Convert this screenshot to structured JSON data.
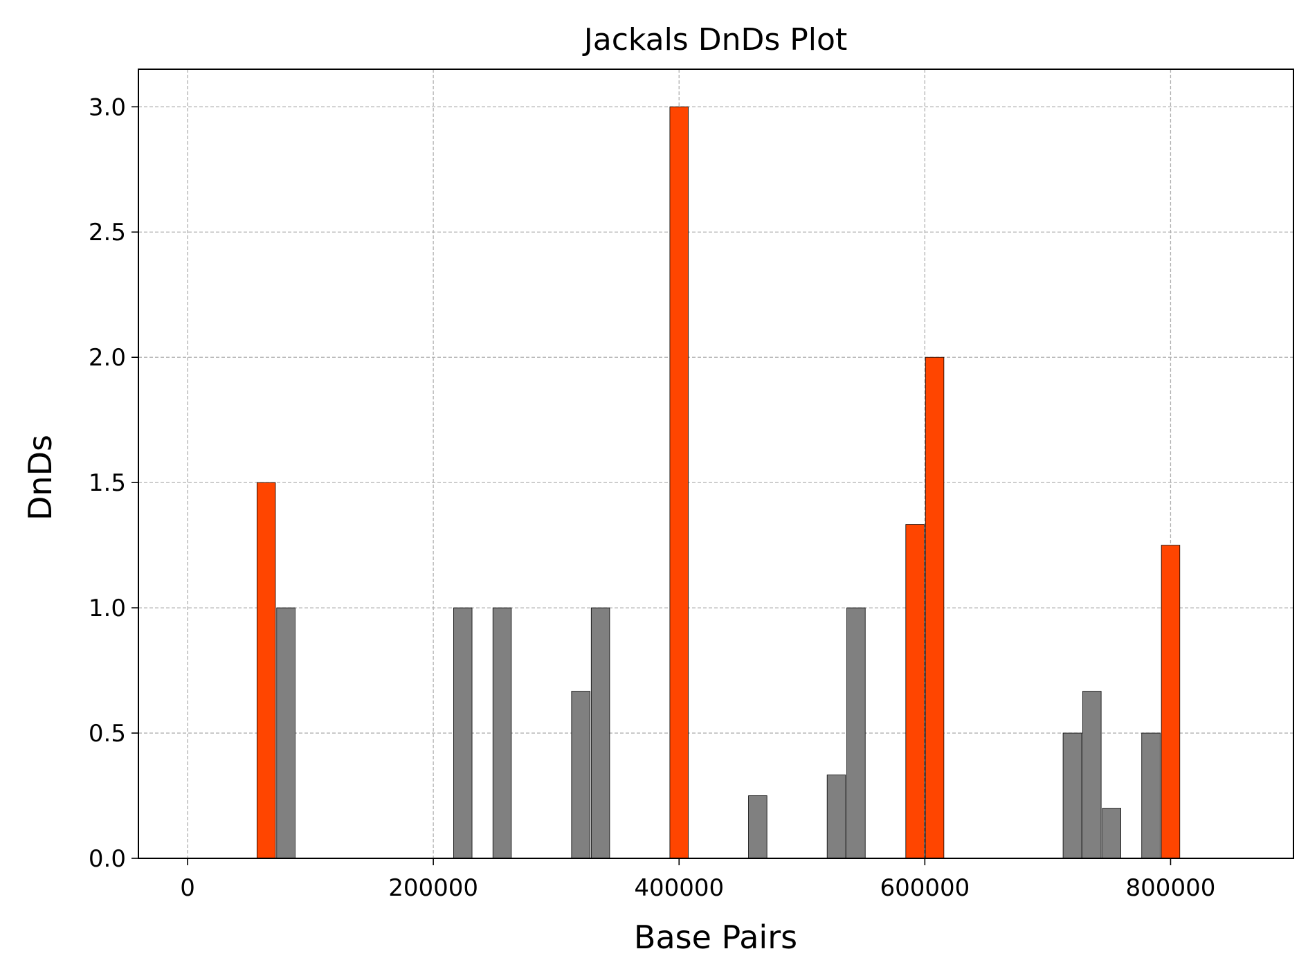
{
  "chart_data": {
    "type": "bar",
    "title": "Jackals DnDs Plot",
    "xlabel": "Base Pairs",
    "ylabel": "DnDs",
    "xlim": [
      -40000,
      900000
    ],
    "ylim": [
      0,
      3.15
    ],
    "xticks": [
      0,
      200000,
      400000,
      600000,
      800000
    ],
    "xtick_labels": [
      "0",
      "200000",
      "400000",
      "600000",
      "800000"
    ],
    "yticks": [
      0,
      0.5,
      1.0,
      1.5,
      2.0,
      2.5,
      3.0
    ],
    "ytick_labels": [
      "0.0",
      "0.5",
      "1.0",
      "1.5",
      "2.0",
      "2.5",
      "3.0"
    ],
    "grid": true,
    "bar_width": 15000,
    "colors": {
      "highlight": "#ff4500",
      "normal": "#808080"
    },
    "bars": [
      {
        "x": 64000,
        "value": 1.5,
        "highlight": true
      },
      {
        "x": 80000,
        "value": 1.0,
        "highlight": false
      },
      {
        "x": 224000,
        "value": 1.0,
        "highlight": false
      },
      {
        "x": 256000,
        "value": 1.0,
        "highlight": false
      },
      {
        "x": 320000,
        "value": 0.667,
        "highlight": false
      },
      {
        "x": 336000,
        "value": 1.0,
        "highlight": false
      },
      {
        "x": 400000,
        "value": 3.0,
        "highlight": true
      },
      {
        "x": 464000,
        "value": 0.25,
        "highlight": false
      },
      {
        "x": 528000,
        "value": 0.333,
        "highlight": false
      },
      {
        "x": 544000,
        "value": 1.0,
        "highlight": false
      },
      {
        "x": 592000,
        "value": 1.333,
        "highlight": true
      },
      {
        "x": 608000,
        "value": 2.0,
        "highlight": true
      },
      {
        "x": 720000,
        "value": 0.5,
        "highlight": false
      },
      {
        "x": 736000,
        "value": 0.667,
        "highlight": false
      },
      {
        "x": 752000,
        "value": 0.2,
        "highlight": false
      },
      {
        "x": 784000,
        "value": 0.5,
        "highlight": false
      },
      {
        "x": 800000,
        "value": 1.25,
        "highlight": true
      }
    ]
  }
}
